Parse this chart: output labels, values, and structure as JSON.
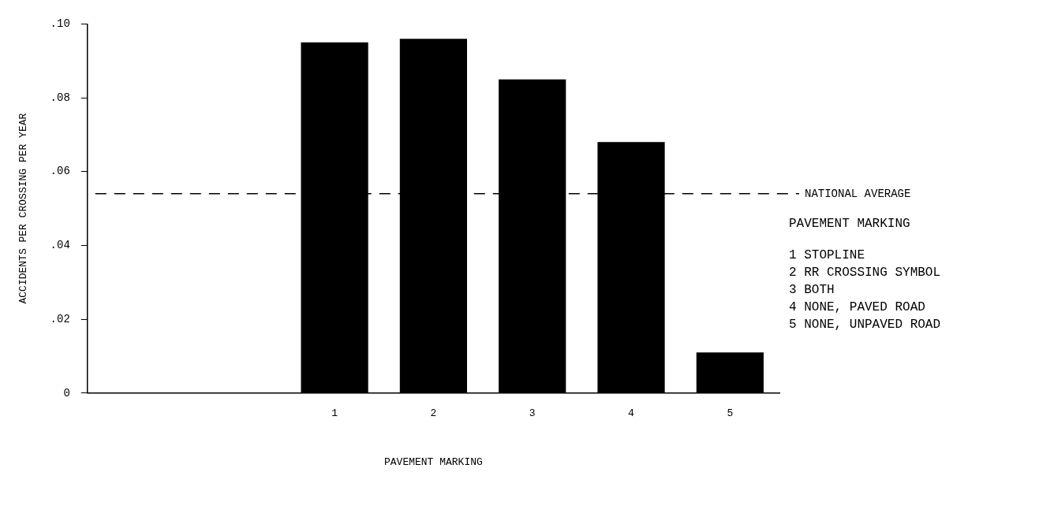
{
  "chart_data": {
    "type": "bar",
    "xlabel": "PAVEMENT MARKING",
    "ylabel": "ACCIDENTS PER CROSSING PER YEAR",
    "categories": [
      null,
      null,
      "1",
      "2",
      "3",
      "4",
      "5"
    ],
    "values": [
      null,
      null,
      0.095,
      0.096,
      0.085,
      0.068,
      0.011
    ],
    "color": "#000000",
    "ylim": [
      0,
      0.1
    ],
    "yticks": [
      {
        "value": 0,
        "label": "0"
      },
      {
        "value": 0.02,
        "label": ".02"
      },
      {
        "value": 0.04,
        "label": ".04"
      },
      {
        "value": 0.06,
        "label": ".06"
      },
      {
        "value": 0.08,
        "label": ".08"
      },
      {
        "value": 0.1,
        "label": ".10"
      }
    ],
    "grid": false,
    "legend": false,
    "ref_lines": [
      {
        "axis": "y",
        "value": 0.054,
        "label": "NATIONAL AVERAGE",
        "line_style": "dashed"
      }
    ],
    "annotations": [
      "PAVEMENT MARKING",
      "1 STOPLINE",
      "2 RR CROSSING SYMBOL",
      "3 BOTH",
      "4 NONE, PAVED ROAD",
      "5 NONE, UNPAVED ROAD"
    ]
  }
}
